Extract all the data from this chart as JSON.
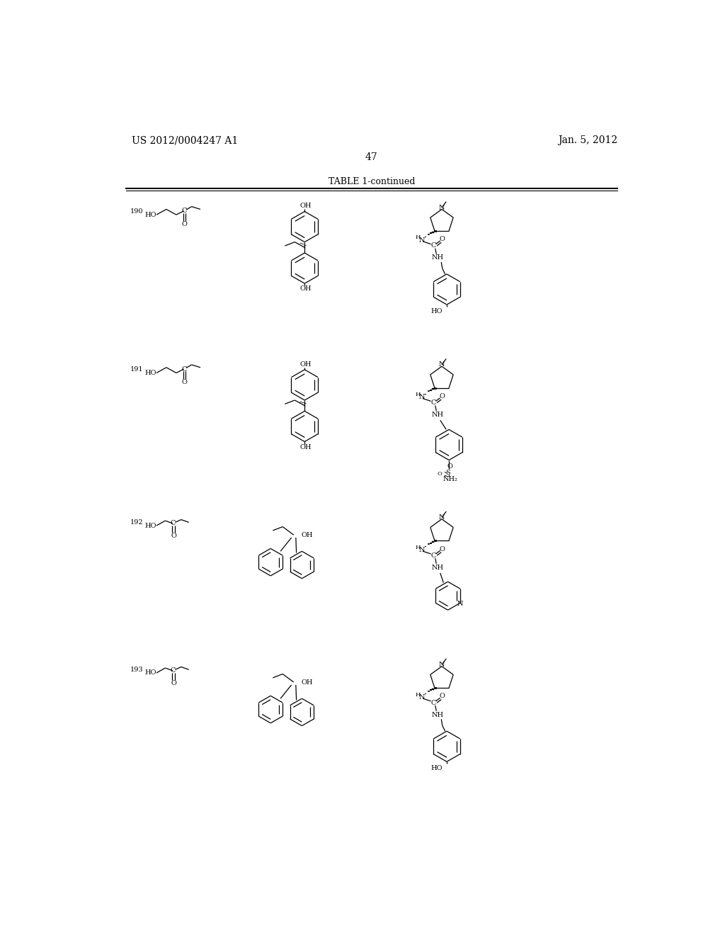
{
  "page_header_left": "US 2012/0004247 A1",
  "page_header_right": "Jan. 5, 2012",
  "page_number": "47",
  "table_title": "TABLE 1-continued",
  "bg_color": "#ffffff",
  "row_ids": [
    "190",
    "191",
    "192",
    "193"
  ],
  "row_tops": [
    170,
    460,
    740,
    1010
  ],
  "font_size_header": 10,
  "font_size_id": 7,
  "font_size_atom": 7,
  "font_size_table_title": 9
}
